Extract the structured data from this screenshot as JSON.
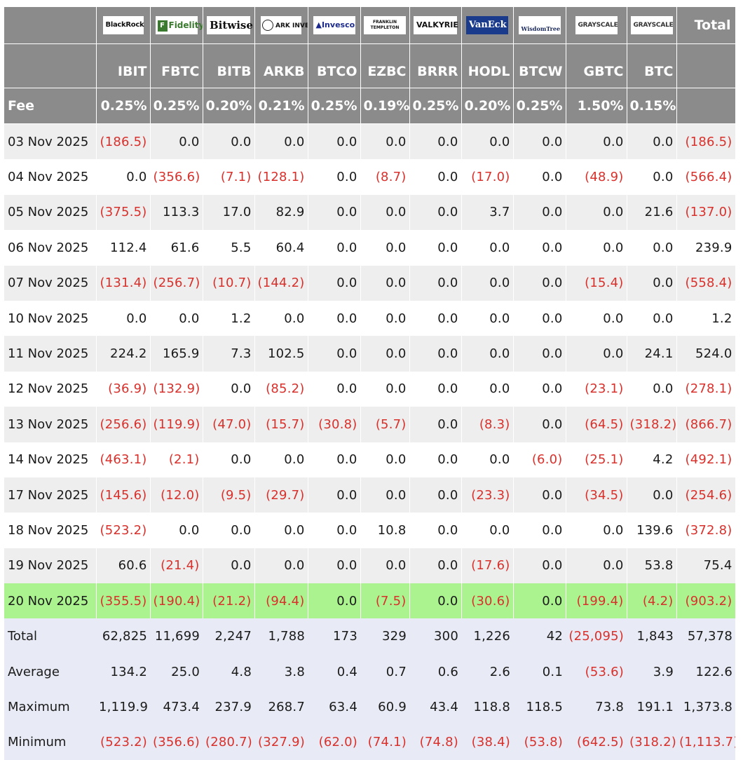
{
  "table": {
    "issuers": [
      {
        "name": "BlackRock",
        "icon": "blackrock-logo"
      },
      {
        "name": "Fidelity",
        "icon": "fidelity-logo"
      },
      {
        "name": "Bitwise",
        "icon": "bitwise-logo"
      },
      {
        "name": "ARK INVEST",
        "icon": "ark-invest-logo"
      },
      {
        "name": "Invesco",
        "icon": "invesco-logo"
      },
      {
        "name": "FRANKLIN TEMPLETON",
        "icon": "franklin-templeton-logo"
      },
      {
        "name": "VALKYRIE",
        "icon": "valkyrie-logo"
      },
      {
        "name": "VanEck",
        "icon": "vaneck-logo"
      },
      {
        "name": "WisdomTree",
        "icon": "wisdomtree-logo"
      },
      {
        "name": "GRAYSCALE",
        "icon": "grayscale-logo"
      },
      {
        "name": "GRAYSCALE",
        "icon": "grayscale-logo"
      }
    ],
    "total_header": "Total",
    "tickers": [
      "IBIT",
      "FBTC",
      "BITB",
      "ARKB",
      "BTCO",
      "EZBC",
      "BRRR",
      "HODL",
      "BTCW",
      "GBTC",
      "BTC"
    ],
    "fee_label": "Fee",
    "fees": [
      "0.25%",
      "0.25%",
      "0.20%",
      "0.21%",
      "0.25%",
      "0.19%",
      "0.25%",
      "0.20%",
      "0.25%",
      "1.50%",
      "0.15%"
    ],
    "rows": [
      {
        "date": "03 Nov 2025",
        "values": [
          "(186.5)",
          "0.0",
          "0.0",
          "0.0",
          "0.0",
          "0.0",
          "0.0",
          "0.0",
          "0.0",
          "0.0",
          "0.0"
        ],
        "total": "(186.5)"
      },
      {
        "date": "04 Nov 2025",
        "values": [
          "0.0",
          "(356.6)",
          "(7.1)",
          "(128.1)",
          "0.0",
          "(8.7)",
          "0.0",
          "(17.0)",
          "0.0",
          "(48.9)",
          "0.0"
        ],
        "total": "(566.4)"
      },
      {
        "date": "05 Nov 2025",
        "values": [
          "(375.5)",
          "113.3",
          "17.0",
          "82.9",
          "0.0",
          "0.0",
          "0.0",
          "3.7",
          "0.0",
          "0.0",
          "21.6"
        ],
        "total": "(137.0)"
      },
      {
        "date": "06 Nov 2025",
        "values": [
          "112.4",
          "61.6",
          "5.5",
          "60.4",
          "0.0",
          "0.0",
          "0.0",
          "0.0",
          "0.0",
          "0.0",
          "0.0"
        ],
        "total": "239.9"
      },
      {
        "date": "07 Nov 2025",
        "values": [
          "(131.4)",
          "(256.7)",
          "(10.7)",
          "(144.2)",
          "0.0",
          "0.0",
          "0.0",
          "0.0",
          "0.0",
          "(15.4)",
          "0.0"
        ],
        "total": "(558.4)"
      },
      {
        "date": "10 Nov 2025",
        "values": [
          "0.0",
          "0.0",
          "1.2",
          "0.0",
          "0.0",
          "0.0",
          "0.0",
          "0.0",
          "0.0",
          "0.0",
          "0.0"
        ],
        "total": "1.2"
      },
      {
        "date": "11 Nov 2025",
        "values": [
          "224.2",
          "165.9",
          "7.3",
          "102.5",
          "0.0",
          "0.0",
          "0.0",
          "0.0",
          "0.0",
          "0.0",
          "24.1"
        ],
        "total": "524.0"
      },
      {
        "date": "12 Nov 2025",
        "values": [
          "(36.9)",
          "(132.9)",
          "0.0",
          "(85.2)",
          "0.0",
          "0.0",
          "0.0",
          "0.0",
          "0.0",
          "(23.1)",
          "0.0"
        ],
        "total": "(278.1)"
      },
      {
        "date": "13 Nov 2025",
        "values": [
          "(256.6)",
          "(119.9)",
          "(47.0)",
          "(15.7)",
          "(30.8)",
          "(5.7)",
          "0.0",
          "(8.3)",
          "0.0",
          "(64.5)",
          "(318.2)"
        ],
        "total": "(866.7)"
      },
      {
        "date": "14 Nov 2025",
        "values": [
          "(463.1)",
          "(2.1)",
          "0.0",
          "0.0",
          "0.0",
          "0.0",
          "0.0",
          "0.0",
          "(6.0)",
          "(25.1)",
          "4.2"
        ],
        "total": "(492.1)"
      },
      {
        "date": "17 Nov 2025",
        "values": [
          "(145.6)",
          "(12.0)",
          "(9.5)",
          "(29.7)",
          "0.0",
          "0.0",
          "0.0",
          "(23.3)",
          "0.0",
          "(34.5)",
          "0.0"
        ],
        "total": "(254.6)"
      },
      {
        "date": "18 Nov 2025",
        "values": [
          "(523.2)",
          "0.0",
          "0.0",
          "0.0",
          "0.0",
          "10.8",
          "0.0",
          "0.0",
          "0.0",
          "0.0",
          "139.6"
        ],
        "total": "(372.8)"
      },
      {
        "date": "19 Nov 2025",
        "values": [
          "60.6",
          "(21.4)",
          "0.0",
          "0.0",
          "0.0",
          "0.0",
          "0.0",
          "(17.6)",
          "0.0",
          "0.0",
          "53.8"
        ],
        "total": "75.4"
      },
      {
        "date": "20 Nov 2025",
        "values": [
          "(355.5)",
          "(190.4)",
          "(21.2)",
          "(94.4)",
          "0.0",
          "(7.5)",
          "0.0",
          "(30.6)",
          "0.0",
          "(199.4)",
          "(4.2)"
        ],
        "total": "(903.2)",
        "highlighted": true
      }
    ],
    "stats": [
      {
        "label": "Total",
        "values": [
          "62,825",
          "11,699",
          "2,247",
          "1,788",
          "173",
          "329",
          "300",
          "1,226",
          "42",
          "(25,095)",
          "1,843"
        ],
        "total": "57,378"
      },
      {
        "label": "Average",
        "values": [
          "134.2",
          "25.0",
          "4.8",
          "3.8",
          "0.4",
          "0.7",
          "0.6",
          "2.6",
          "0.1",
          "(53.6)",
          "3.9"
        ],
        "total": "122.6"
      },
      {
        "label": "Maximum",
        "values": [
          "1,119.9",
          "473.4",
          "237.9",
          "268.7",
          "63.4",
          "60.9",
          "43.4",
          "118.8",
          "118.5",
          "73.8",
          "191.1"
        ],
        "total": "1,373.8"
      },
      {
        "label": "Minimum",
        "values": [
          "(523.2)",
          "(356.6)",
          "(280.7)",
          "(327.9)",
          "(62.0)",
          "(74.1)",
          "(74.8)",
          "(38.4)",
          "(53.8)",
          "(642.5)",
          "(318.2)"
        ],
        "total": "(1,113.7)"
      }
    ],
    "colors": {
      "header_bg": "#8b8b8b",
      "negative_text": "#d8312c",
      "highlight_bg": "#aaf38f",
      "stats_bg": "#e8ebf5",
      "stripe_bg": "#eeeeee"
    }
  }
}
